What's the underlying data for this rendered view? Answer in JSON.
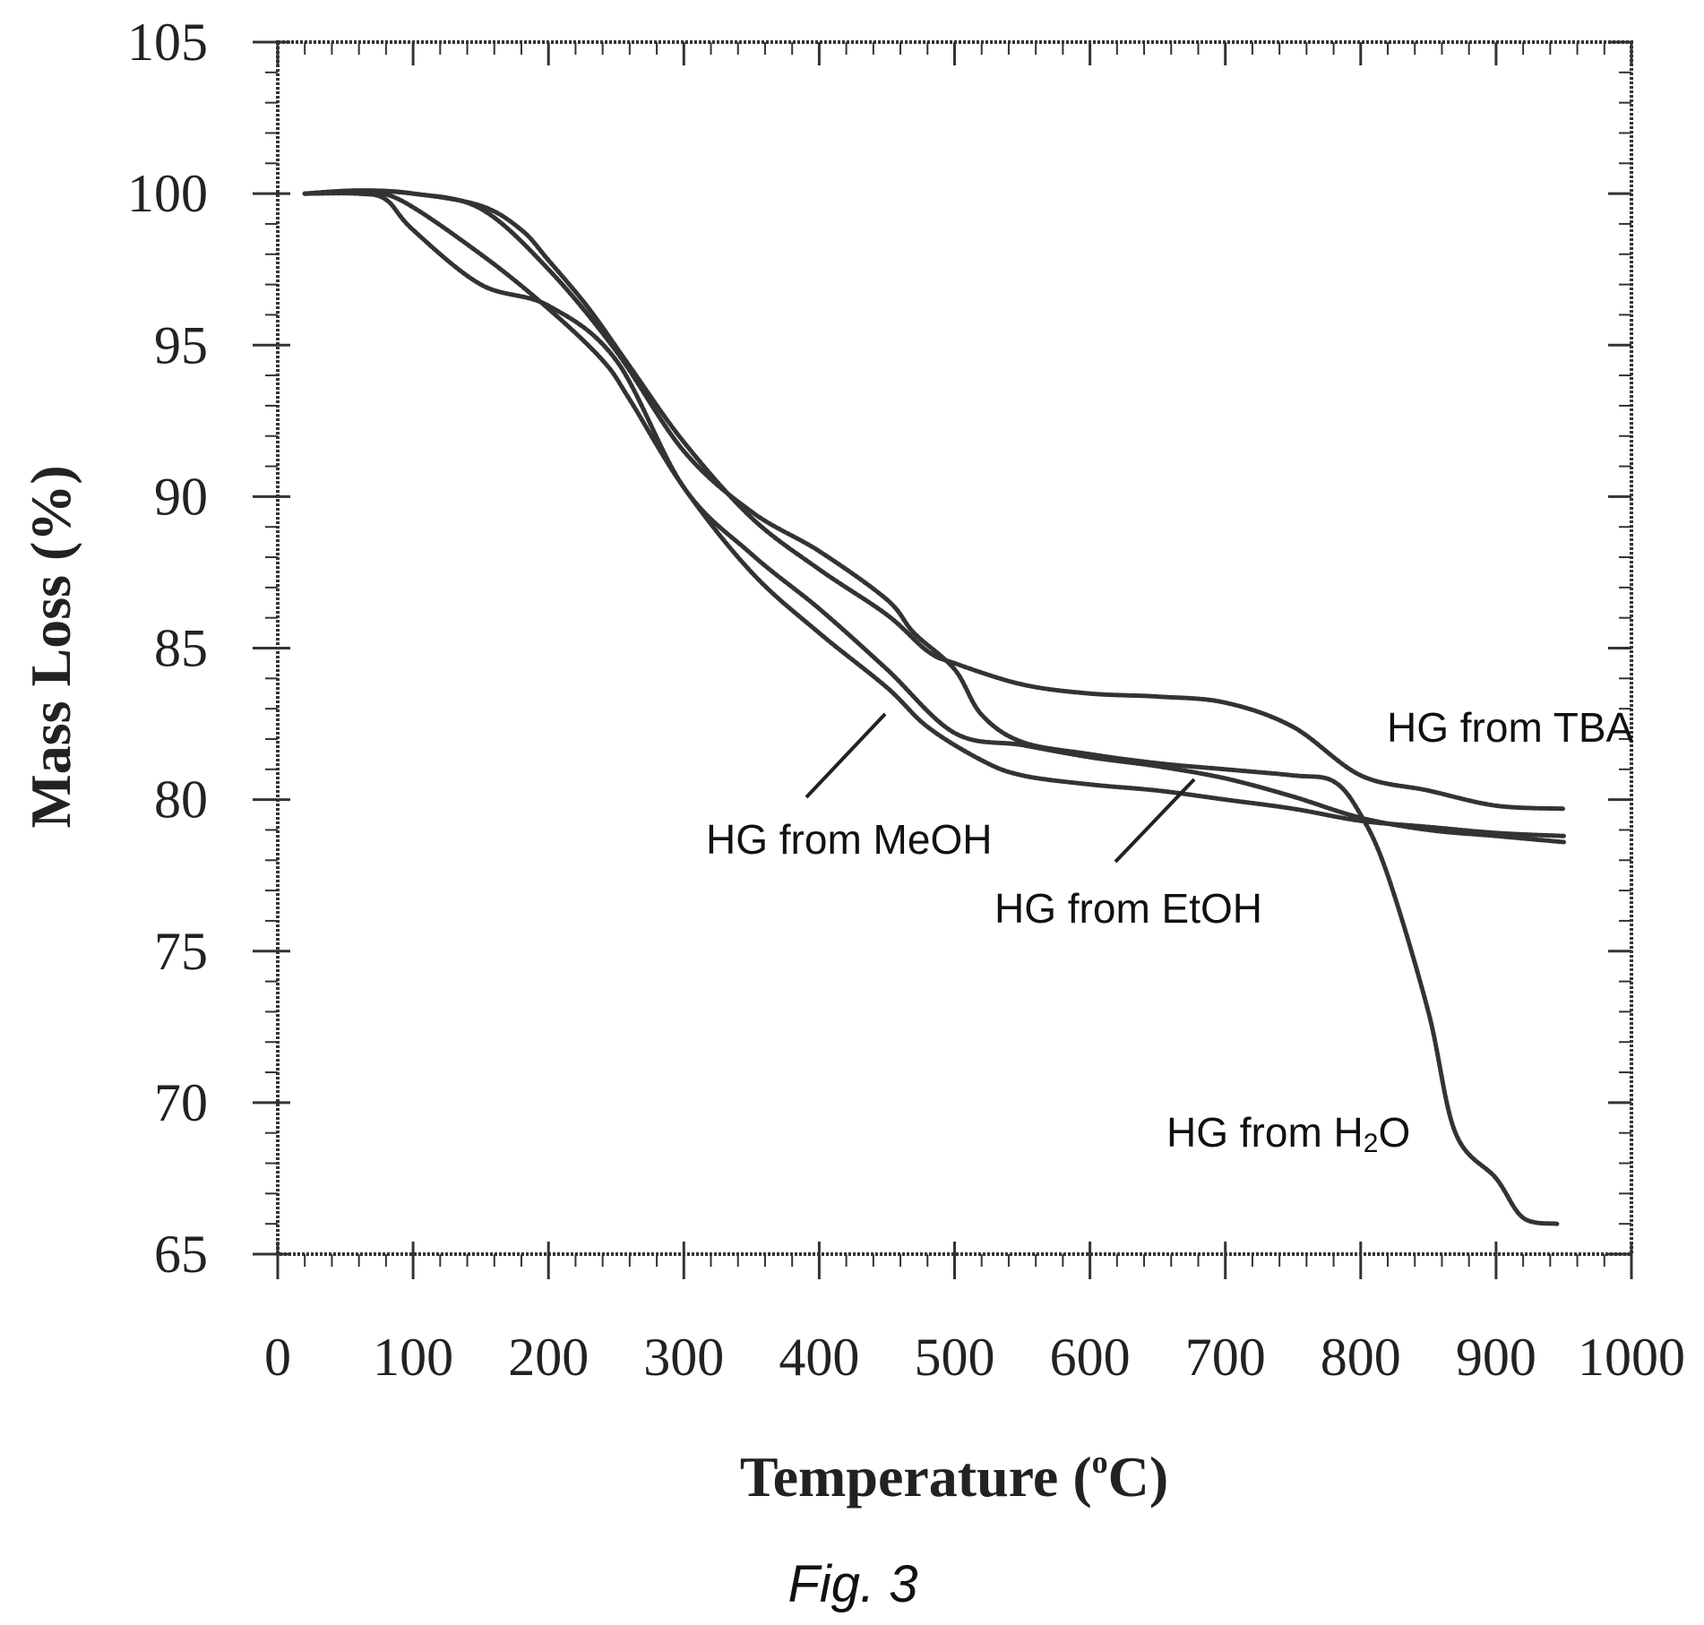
{
  "figure": {
    "caption": "Fig. 3"
  },
  "chart_data": {
    "type": "line",
    "title": "",
    "xlabel_main": "Temperature (",
    "xlabel_sup": "o",
    "xlabel_end": "C)",
    "ylabel": "Mass Loss (%)",
    "xlim": [
      0,
      1000
    ],
    "ylim": [
      65,
      105
    ],
    "xticks": [
      0,
      100,
      200,
      300,
      400,
      500,
      600,
      700,
      800,
      900,
      1000
    ],
    "yticks": [
      65,
      70,
      75,
      80,
      85,
      90,
      95,
      100,
      105
    ],
    "grid": false,
    "series": [
      {
        "key": "tba",
        "x": [
          20,
          60,
          100,
          150,
          180,
          200,
          230,
          260,
          300,
          350,
          400,
          450,
          480,
          500,
          550,
          600,
          650,
          700,
          750,
          800,
          850,
          900,
          950
        ],
        "y": [
          100,
          100.1,
          100,
          99.6,
          98.8,
          97.8,
          96.2,
          94.3,
          91.8,
          89.3,
          87.6,
          86.1,
          84.9,
          84.5,
          83.8,
          83.5,
          83.4,
          83.2,
          82.4,
          80.8,
          80.3,
          79.8,
          79.7
        ]
      },
      {
        "key": "h2o",
        "x": [
          20,
          60,
          100,
          150,
          200,
          250,
          300,
          350,
          400,
          450,
          470,
          500,
          520,
          550,
          600,
          650,
          700,
          750,
          780,
          800,
          820,
          850,
          870,
          900,
          920,
          945
        ],
        "y": [
          100,
          100.1,
          100,
          99.5,
          97.5,
          94.8,
          91.5,
          89.5,
          88.2,
          86.6,
          85.5,
          84.3,
          82.8,
          81.9,
          81.5,
          81.2,
          81,
          80.8,
          80.6,
          79.5,
          77.5,
          73,
          69,
          67.5,
          66.2,
          66
        ]
      },
      {
        "key": "meoh",
        "x": [
          20,
          60,
          80,
          100,
          150,
          200,
          250,
          300,
          350,
          400,
          450,
          500,
          550,
          600,
          650,
          700,
          750,
          800,
          850,
          900,
          950
        ],
        "y": [
          100,
          100,
          99.8,
          98.8,
          97,
          96.3,
          94.5,
          90.3,
          88.1,
          86.3,
          84.3,
          82.2,
          81.8,
          81.4,
          81.1,
          80.7,
          80.1,
          79.4,
          79,
          78.8,
          78.6
        ]
      },
      {
        "key": "etoh",
        "x": [
          20,
          60,
          90,
          150,
          200,
          240,
          260,
          300,
          350,
          400,
          450,
          480,
          520,
          550,
          600,
          650,
          700,
          750,
          800,
          850,
          900,
          950
        ],
        "y": [
          100,
          100,
          99.8,
          98,
          96.2,
          94.5,
          93.2,
          90.3,
          87.5,
          85.5,
          83.7,
          82.4,
          81.3,
          80.8,
          80.5,
          80.3,
          80,
          79.7,
          79.3,
          79.1,
          78.9,
          78.8
        ]
      }
    ],
    "annotations": [
      {
        "key": "tba",
        "text": "HG from TBA"
      },
      {
        "key": "meoh",
        "text": "HG from MeOH"
      },
      {
        "key": "etoh",
        "text": "HG from EtOH"
      },
      {
        "key": "h2o",
        "text_main": "HG from H",
        "text_sub": "2",
        "text_end": "O"
      }
    ]
  }
}
